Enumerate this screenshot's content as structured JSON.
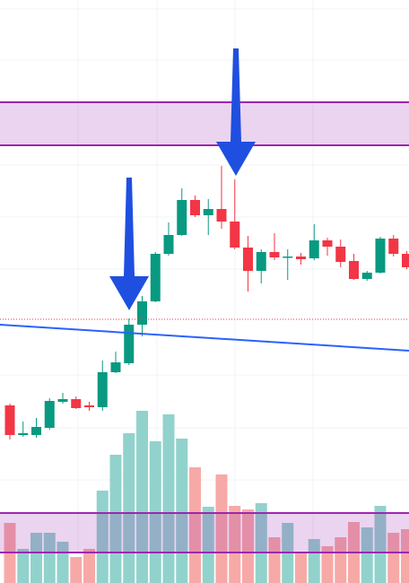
{
  "chart_data": {
    "type": "candlestick",
    "up_color": "#089981",
    "down_color": "#f23645",
    "volume_up_color": "#92d2cc",
    "volume_down_color": "#f7a9a7",
    "ylim": [
      0,
      650
    ],
    "series": {
      "open": [
        198,
        165,
        165,
        173,
        202,
        205,
        198,
        196,
        235,
        245,
        288,
        314,
        367,
        388,
        427,
        410,
        417,
        403,
        374,
        348,
        369,
        363,
        364,
        362,
        382,
        375,
        359,
        339,
        346,
        384,
        367
      ],
      "high": [
        200,
        180,
        184,
        206,
        212,
        208,
        202,
        248,
        258,
        295,
        320,
        369,
        402,
        440,
        432,
        428,
        465,
        450,
        387,
        372,
        390,
        372,
        368,
        400,
        385,
        383,
        367,
        348,
        386,
        388,
        370
      ],
      "low": [
        160,
        163,
        162,
        171,
        200,
        194,
        192,
        192,
        234,
        243,
        275,
        313,
        365,
        387,
        408,
        388,
        395,
        372,
        325,
        334,
        360,
        338,
        355,
        360,
        365,
        352,
        338,
        337,
        345,
        364,
        350
      ],
      "close": [
        165,
        167,
        174,
        203,
        205,
        195,
        196,
        235,
        246,
        288,
        314,
        367,
        388,
        427,
        410,
        417,
        403,
        374,
        348,
        369,
        363,
        364,
        361,
        382,
        375,
        358,
        339,
        346,
        384,
        367,
        352
      ],
      "volume": [
        67,
        38,
        56,
        56,
        46,
        29,
        38,
        103,
        143,
        167,
        192,
        158,
        188,
        161,
        129,
        85,
        121,
        86,
        82,
        89,
        51,
        67,
        35,
        49,
        41,
        51,
        68,
        62,
        86,
        56,
        60
      ]
    }
  }
}
